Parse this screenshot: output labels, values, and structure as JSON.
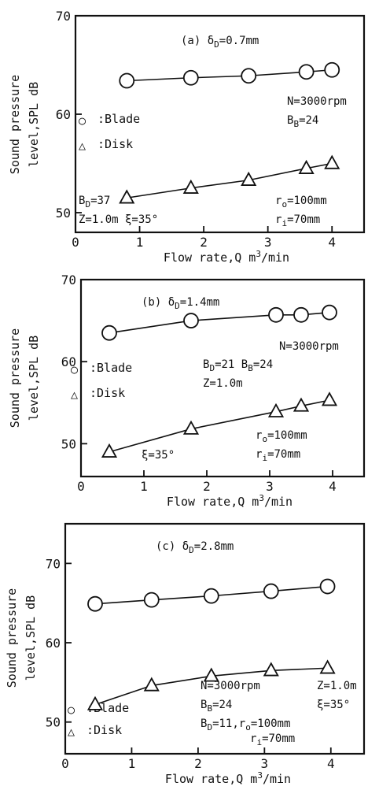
{
  "chart_data": [
    {
      "type": "line",
      "title": "(a) δD=0.7mm",
      "xlabel": "Flow rate,Q  m3/min",
      "ylabel_line1": "Sound pressure",
      "ylabel_line2": "level,SPL  dB",
      "xlim": [
        0,
        4.5
      ],
      "ylim": [
        48,
        70
      ],
      "xticks": [
        0,
        1,
        2,
        3,
        4
      ],
      "yticks": [
        50,
        60,
        70
      ],
      "grid": false,
      "legend_placement": "middle-left",
      "series": [
        {
          "name": "Blade",
          "marker": "circle",
          "x": [
            0.8,
            1.8,
            2.7,
            3.6,
            4.0
          ],
          "y": [
            63.4,
            63.7,
            63.9,
            64.3,
            64.5
          ]
        },
        {
          "name": "Disk",
          "marker": "triangle",
          "x": [
            0.8,
            1.8,
            2.7,
            3.6,
            4.0
          ],
          "y": [
            51.5,
            52.5,
            53.3,
            54.5,
            55.0
          ]
        }
      ],
      "legend": [
        {
          "symbol": "○",
          "label": ":Blade"
        },
        {
          "symbol": "△",
          "label": ":Disk"
        }
      ],
      "annotations": [
        "N=3000rpm",
        "BB=24",
        "BD=37",
        "Z=1.0m  ξ=35°",
        "ro=100mm",
        "ri=70mm"
      ]
    },
    {
      "type": "line",
      "title": "(b) δD=1.4mm",
      "xlabel": "Flow rate,Q  m3/min",
      "ylabel_line1": "Sound pressure",
      "ylabel_line2": "level,SPL  dB",
      "xlim": [
        0,
        4.5
      ],
      "ylim": [
        46,
        70
      ],
      "xticks": [
        0,
        1,
        2,
        3,
        4
      ],
      "yticks": [
        50,
        60,
        70
      ],
      "grid": false,
      "legend_placement": "middle-left",
      "series": [
        {
          "name": "Blade",
          "marker": "circle",
          "x": [
            0.45,
            1.75,
            3.1,
            3.5,
            3.95
          ],
          "y": [
            63.5,
            65.0,
            65.7,
            65.7,
            66.0
          ]
        },
        {
          "name": "Disk",
          "marker": "triangle",
          "x": [
            0.45,
            1.75,
            3.1,
            3.5,
            3.95
          ],
          "y": [
            49.0,
            51.8,
            53.9,
            54.6,
            55.3
          ]
        }
      ],
      "legend": [
        {
          "symbol": "○",
          "label": ":Blade"
        },
        {
          "symbol": "△",
          "label": ":Disk"
        }
      ],
      "annotations": [
        "N=3000rpm",
        "BD=21   BB=24",
        "Z=1.0m",
        "ro=100mm",
        "ri=70mm",
        "ξ=35°"
      ]
    },
    {
      "type": "line",
      "title": "(c) δD=2.8mm",
      "xlabel": "Flow rate,Q  m3/min",
      "ylabel_line1": "Sound pressure",
      "ylabel_line2": "level,SPL  dB",
      "xlim": [
        0,
        4.5
      ],
      "ylim": [
        46,
        75
      ],
      "xticks": [
        0,
        1,
        2,
        3,
        4
      ],
      "yticks": [
        50,
        60,
        70
      ],
      "grid": false,
      "legend_placement": "bottom-left",
      "series": [
        {
          "name": "Blade",
          "marker": "circle",
          "x": [
            0.45,
            1.3,
            2.2,
            3.1,
            3.95
          ],
          "y": [
            64.9,
            65.4,
            65.9,
            66.5,
            67.1
          ]
        },
        {
          "name": "Disk",
          "marker": "triangle",
          "x": [
            0.45,
            1.3,
            2.2,
            3.1,
            3.95
          ],
          "y": [
            52.2,
            54.6,
            55.8,
            56.5,
            56.8
          ]
        }
      ],
      "legend": [
        {
          "symbol": "○",
          "label": ":Blade"
        },
        {
          "symbol": "△",
          "label": ":Disk"
        }
      ],
      "annotations": [
        "N=3000rpm",
        "Z=1.0m",
        "BB=24",
        "ξ=35°",
        "BD=11,ro=100mm",
        "ri=70mm"
      ]
    }
  ]
}
